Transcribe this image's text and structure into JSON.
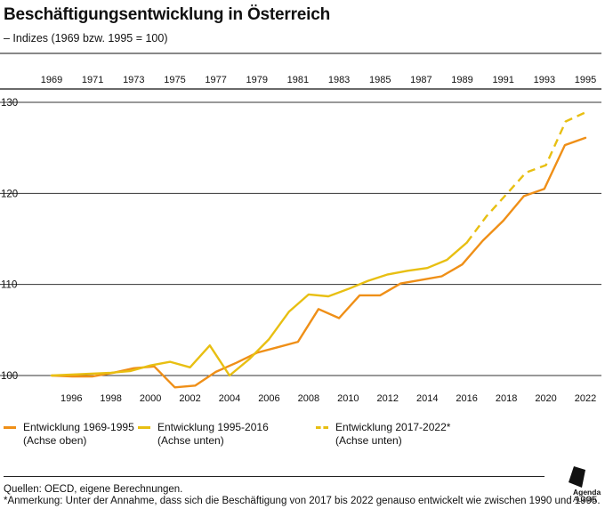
{
  "title": "Beschäftigungsentwicklung in Österreich",
  "subtitle": "– Indizes (1969 bzw. 1995 = 100)",
  "source": "Quellen: OECD, eigene Berechnungen.",
  "note": "*Anmerkung: Unter der Annahme, dass sich die Beschäftigung von 2017 bis 2022 genauso entwickelt wie zwischen 1990 und 1995.",
  "logo": {
    "line1": "Agenda",
    "line2": "Austria"
  },
  "colors": {
    "orange": "#ef8f17",
    "yellow": "#e8bf12",
    "grid": "#333333"
  },
  "legend": [
    {
      "line1": "Entwicklung 1969-1995",
      "line2": "(Achse oben)",
      "style": "solid",
      "color": "#ef8f17"
    },
    {
      "line1": "Entwicklung 1995-2016",
      "line2": "(Achse unten)",
      "style": "solid",
      "color": "#e8bf12"
    },
    {
      "line1": "Entwicklung 2017-2022*",
      "line2": "(Achse unten)",
      "style": "dashed",
      "color": "#e8bf12"
    }
  ],
  "chart_data": {
    "type": "line",
    "ylim": [
      100,
      130
    ],
    "yticks": [
      100,
      110,
      120,
      130
    ],
    "grid": true,
    "top_axis": {
      "min": 1969,
      "max": 1995,
      "ticks": [
        1969,
        1971,
        1973,
        1975,
        1977,
        1979,
        1981,
        1983,
        1985,
        1987,
        1989,
        1991,
        1993,
        1995
      ]
    },
    "bottom_axis": {
      "min": 1995,
      "max": 2022,
      "ticks": [
        1996,
        1998,
        2000,
        2002,
        2004,
        2006,
        2008,
        2010,
        2012,
        2014,
        2016,
        2018,
        2020,
        2022
      ]
    },
    "series": [
      {
        "name": "Entwicklung 1969-1995",
        "axis": "top",
        "color": "#ef8f17",
        "style": "solid",
        "x": [
          1969,
          1970,
          1971,
          1972,
          1973,
          1974,
          1975,
          1976,
          1977,
          1978,
          1979,
          1980,
          1981,
          1982,
          1983,
          1984,
          1985,
          1986,
          1987,
          1988,
          1989,
          1990,
          1991,
          1992,
          1993,
          1994,
          1995
        ],
        "y": [
          100.0,
          99.9,
          99.9,
          100.3,
          100.8,
          101.0,
          98.7,
          98.9,
          100.4,
          101.4,
          102.5,
          103.1,
          103.7,
          107.3,
          106.3,
          108.8,
          108.8,
          110.1,
          110.5,
          110.9,
          112.2,
          114.8,
          117.0,
          119.7,
          120.5,
          125.3,
          126.1
        ]
      },
      {
        "name": "Entwicklung 1995-2016",
        "axis": "bottom",
        "color": "#e8bf12",
        "style": "solid",
        "x": [
          1995,
          1996,
          1997,
          1998,
          1999,
          2000,
          2001,
          2002,
          2003,
          2004,
          2005,
          2006,
          2007,
          2008,
          2009,
          2010,
          2011,
          2012,
          2013,
          2014,
          2015,
          2016
        ],
        "y": [
          100.0,
          100.1,
          100.2,
          100.3,
          100.5,
          101.1,
          101.5,
          100.9,
          103.3,
          100.0,
          101.8,
          104.0,
          107.0,
          108.9,
          108.7,
          109.5,
          110.4,
          111.1,
          111.5,
          111.8,
          112.7,
          114.6
        ]
      },
      {
        "name": "Entwicklung 2017-2022*",
        "axis": "bottom",
        "color": "#e8bf12",
        "style": "dashed",
        "x": [
          2016,
          2017,
          2018,
          2019,
          2020,
          2021,
          2022
        ],
        "y": [
          114.6,
          117.5,
          119.9,
          122.3,
          123.1,
          127.9,
          128.9
        ]
      }
    ]
  }
}
